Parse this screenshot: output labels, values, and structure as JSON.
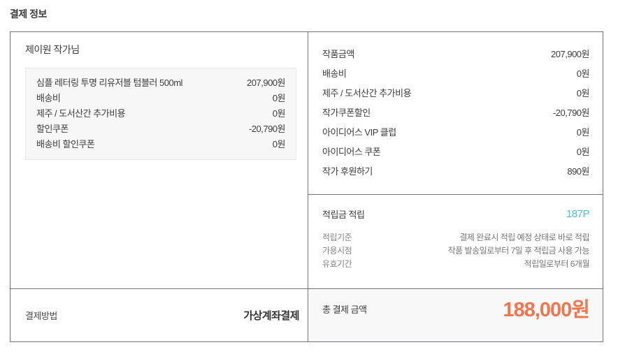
{
  "page": {
    "title": "결제 정보"
  },
  "colors": {
    "accent_orange": "#f0764f",
    "accent_teal": "#4fc0c8",
    "box_border": "#74747a",
    "item_box_bg": "#f7f7f7",
    "total_cell_bg": "#f8f8f8"
  },
  "seller_panel": {
    "seller_name": "제이원 작가님",
    "items": [
      {
        "label": "심플 레터링 투명 리유저블 텀블러 500ml",
        "value": "207,900원"
      },
      {
        "label": "배송비",
        "value": "0원"
      },
      {
        "label": "제주 / 도서산간 추가비용",
        "value": "0원"
      },
      {
        "label": "할인쿠폰",
        "value": "-20,790원"
      },
      {
        "label": "배송비 할인쿠폰",
        "value": "0원"
      }
    ],
    "payment_method": {
      "label": "결제방법",
      "value": "가상계좌결제"
    }
  },
  "summary_panel": {
    "rows": [
      {
        "label": "작품금액",
        "value": "207,900원"
      },
      {
        "label": "배송비",
        "value": "0원"
      },
      {
        "label": "제주 / 도서산간 추가비용",
        "value": "0원"
      },
      {
        "label": "작가쿠폰할인",
        "value": "-20,790원"
      },
      {
        "label": "아이디어스 VIP 클럽",
        "value": "0원"
      },
      {
        "label": "아이디어스 쿠폰",
        "value": "0원"
      },
      {
        "label": "작가 후원하기",
        "value": "890원"
      }
    ],
    "points": {
      "label": "적립금 적립",
      "value": "187P",
      "details": [
        {
          "label": "적립기준",
          "value": "결제 완료시 적립 예정 상태로 바로 적립"
        },
        {
          "label": "가용시점",
          "value": "작품 발송일로부터 7일 후 적립금 사용 가능"
        },
        {
          "label": "유효기간",
          "value": "적립일로부터 6개월"
        }
      ]
    },
    "total": {
      "label": "총 결제 금액",
      "value": "188,000원"
    }
  }
}
